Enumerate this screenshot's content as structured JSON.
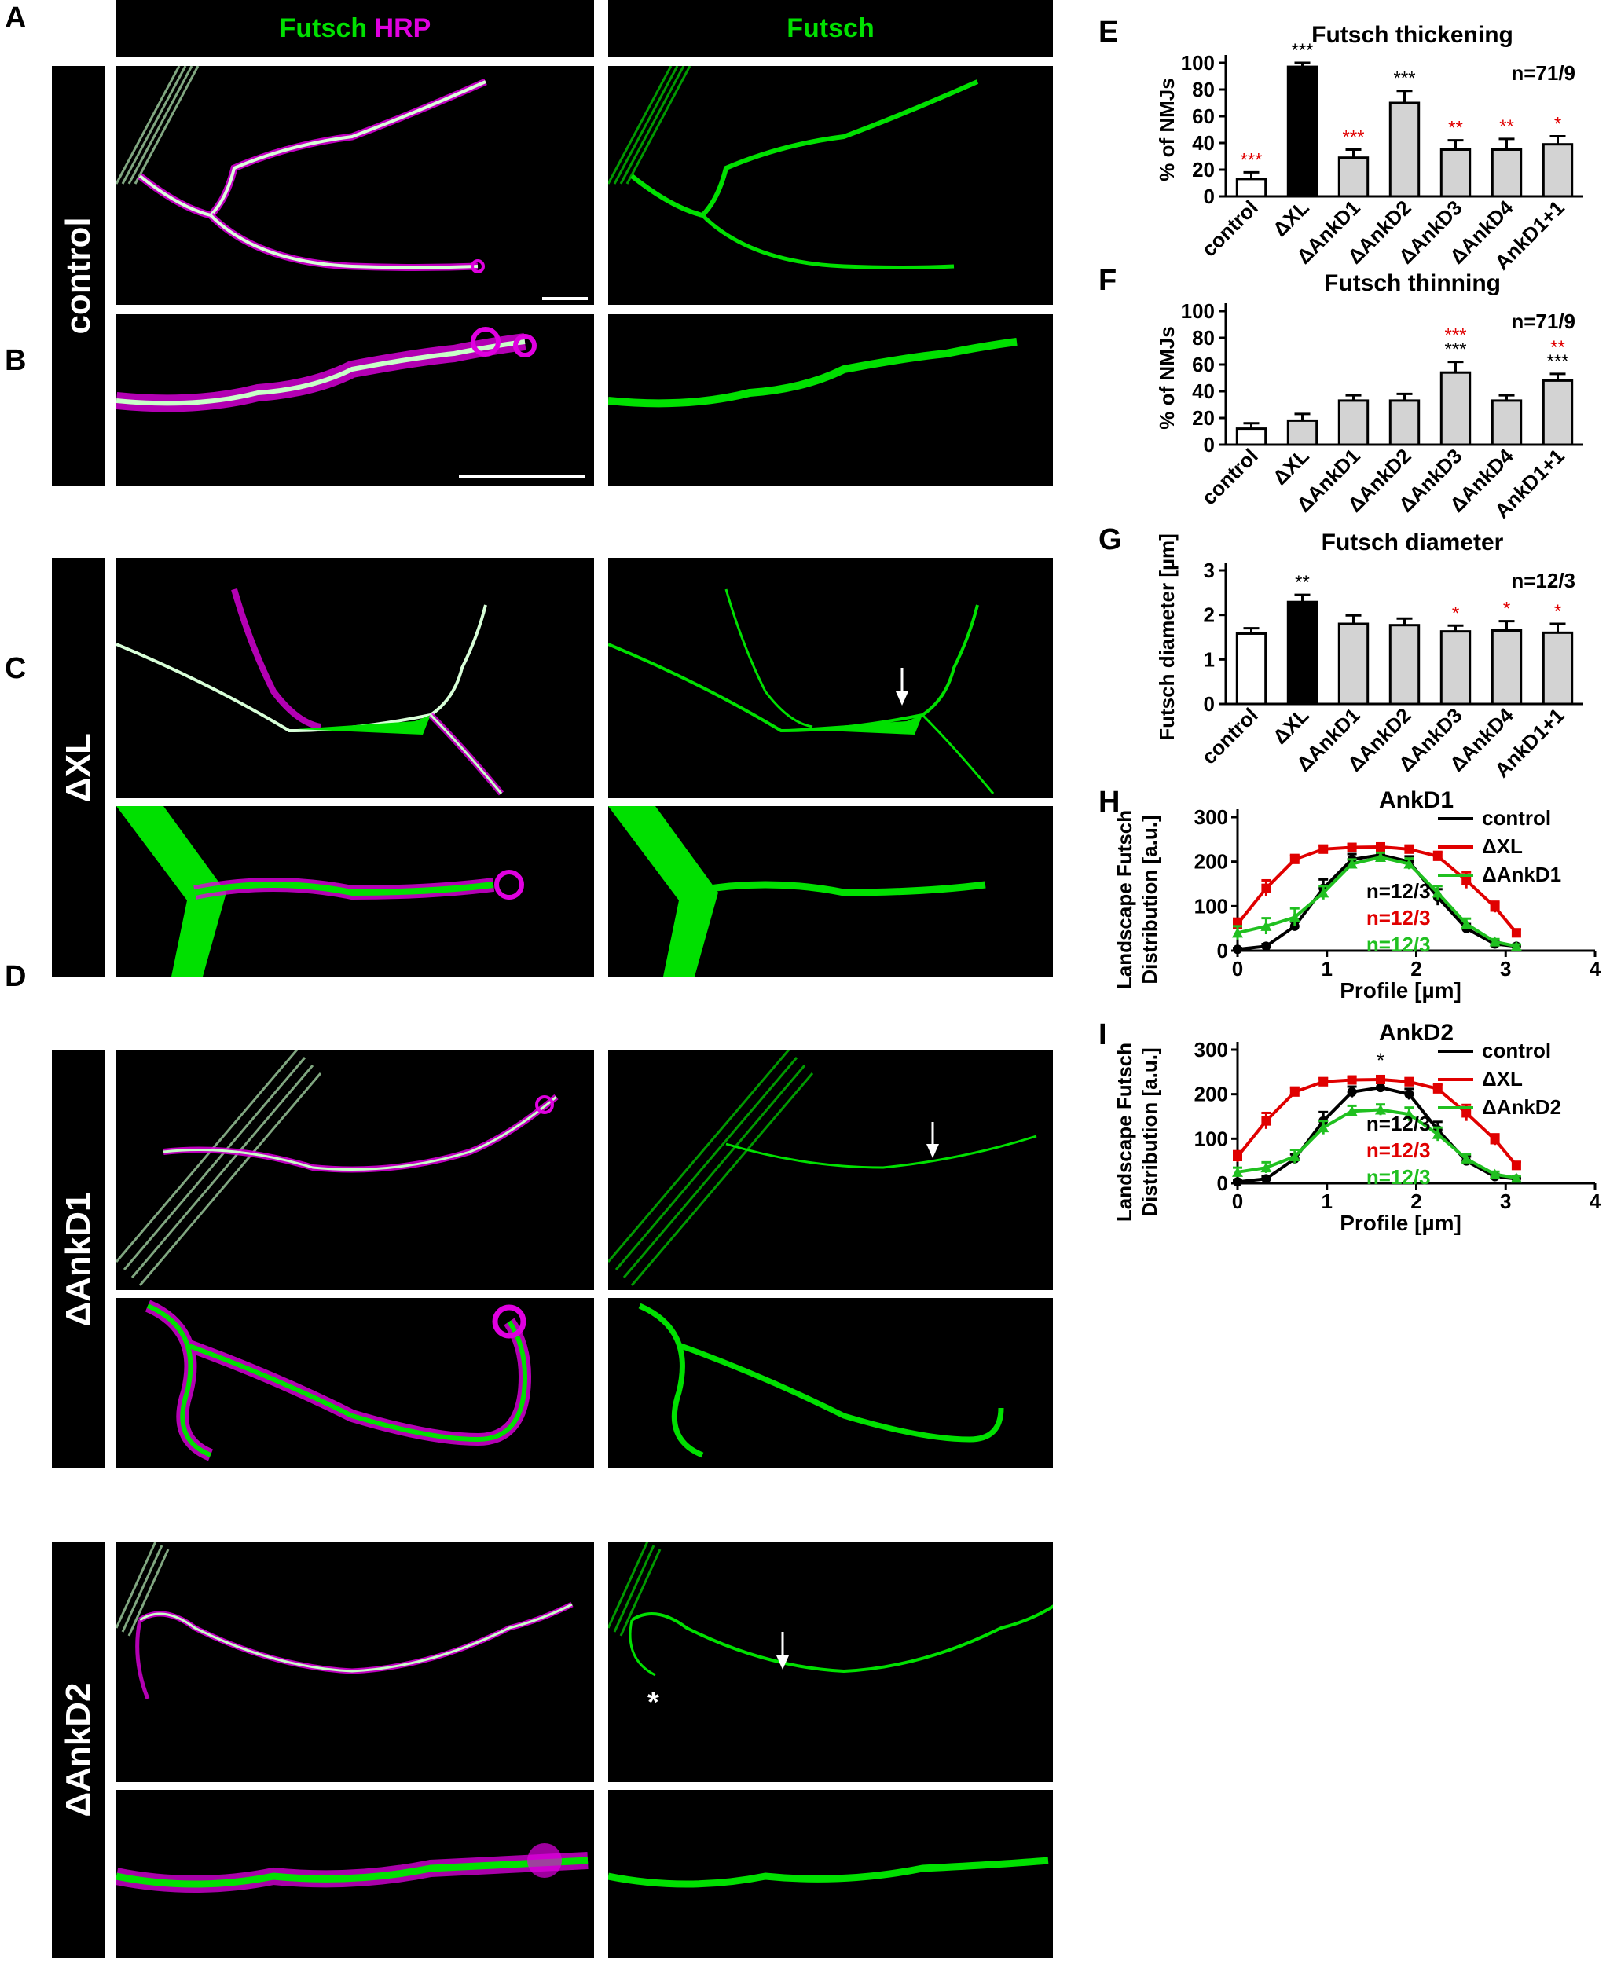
{
  "panel_letters": [
    "A",
    "B",
    "C",
    "D",
    "E",
    "F",
    "G",
    "H",
    "I"
  ],
  "headers": {
    "merge_green": "Futsch",
    "merge_magenta": "HRP",
    "single": "Futsch"
  },
  "rows": [
    {
      "label": "control"
    },
    {
      "label": "ΔXL"
    },
    {
      "label": "ΔAnkD1"
    },
    {
      "label": "ΔAnkD2"
    }
  ],
  "colors": {
    "green": "#00e000",
    "magenta": "#e000e0",
    "red_sig": "#e00000",
    "grey_bar": "#d3d3d3"
  },
  "asterisk_mark": "*",
  "chart_data": [
    {
      "panel": "E",
      "type": "bar",
      "title": "Futsch thickening",
      "ylabel": "% of NMJs",
      "ylim": [
        0,
        100
      ],
      "yticks": [
        0,
        20,
        40,
        60,
        80,
        100
      ],
      "n_label": "n=71/9",
      "categories": [
        "control",
        "ΔXL",
        "ΔAnkD1",
        "ΔAnkD2",
        "ΔAnkD3",
        "ΔAnkD4",
        "AnkD1+1"
      ],
      "values": [
        13,
        97,
        29,
        70,
        35,
        35,
        39
      ],
      "errors": [
        5,
        3,
        6,
        9,
        7,
        8,
        6
      ],
      "fills": [
        "#ffffff",
        "#000000",
        "#d3d3d3",
        "#d3d3d3",
        "#d3d3d3",
        "#d3d3d3",
        "#d3d3d3"
      ],
      "sig_black": [
        "",
        "***",
        "",
        "***",
        "",
        "",
        ""
      ],
      "sig_red": [
        "***",
        "",
        "***",
        "",
        "**",
        "**",
        "*"
      ]
    },
    {
      "panel": "F",
      "type": "bar",
      "title": "Futsch thinning",
      "ylabel": "% of NMJs",
      "ylim": [
        0,
        100
      ],
      "yticks": [
        0,
        20,
        40,
        60,
        80,
        100
      ],
      "n_label": "n=71/9",
      "categories": [
        "control",
        "ΔXL",
        "ΔAnkD1",
        "ΔAnkD2",
        "ΔAnkD3",
        "ΔAnkD4",
        "AnkD1+1"
      ],
      "values": [
        12,
        18,
        33,
        33,
        54,
        33,
        48
      ],
      "errors": [
        4,
        5,
        4,
        5,
        8,
        4,
        5
      ],
      "fills": [
        "#ffffff",
        "#d3d3d3",
        "#d3d3d3",
        "#d3d3d3",
        "#d3d3d3",
        "#d3d3d3",
        "#d3d3d3"
      ],
      "sig_black": [
        "",
        "",
        "",
        "",
        "***",
        "",
        "***"
      ],
      "sig_red": [
        "",
        "",
        "",
        "",
        "***",
        "",
        "**"
      ]
    },
    {
      "panel": "G",
      "type": "bar",
      "title": "Futsch diameter",
      "ylabel": "Futsch diameter [µm]",
      "ylim": [
        0,
        3
      ],
      "yticks": [
        0,
        1,
        2,
        3
      ],
      "n_label": "n=12/3",
      "categories": [
        "control",
        "ΔXL",
        "ΔAnkD1",
        "ΔAnkD2",
        "ΔAnkD3",
        "ΔAnkD4",
        "AnkD1+1"
      ],
      "values": [
        1.58,
        2.29,
        1.8,
        1.77,
        1.63,
        1.65,
        1.6
      ],
      "errors": [
        0.12,
        0.16,
        0.19,
        0.15,
        0.13,
        0.21,
        0.2
      ],
      "fills": [
        "#ffffff",
        "#000000",
        "#d3d3d3",
        "#d3d3d3",
        "#d3d3d3",
        "#d3d3d3",
        "#d3d3d3"
      ],
      "sig_black": [
        "",
        "**",
        "",
        "",
        "",
        "",
        ""
      ],
      "sig_red": [
        "",
        "",
        "",
        "",
        "*",
        "*",
        "*"
      ]
    },
    {
      "panel": "H",
      "type": "line",
      "title": "AnkD1",
      "ylabel": "Landscape Futsch Distribution [a.u.]",
      "xlabel": "Profile [µm]",
      "xlim": [
        0,
        4
      ],
      "ylim": [
        0,
        300
      ],
      "xticks": [
        0,
        1,
        2,
        3,
        4
      ],
      "yticks": [
        0,
        100,
        200,
        300
      ],
      "x": [
        0.0,
        0.32,
        0.64,
        0.96,
        1.28,
        1.6,
        1.92,
        2.24,
        2.56,
        2.88,
        3.12
      ],
      "series": [
        {
          "name": "control",
          "color": "#000000",
          "values": [
            3,
            10,
            55,
            140,
            205,
            215,
            200,
            120,
            50,
            15,
            10
          ],
          "errors": [
            3,
            5,
            10,
            20,
            12,
            10,
            12,
            18,
            10,
            5,
            3
          ]
        },
        {
          "name": "ΔXL",
          "color": "#e00000",
          "values": [
            60,
            140,
            205,
            228,
            232,
            233,
            228,
            212,
            158,
            98,
            40
          ],
          "errors": [
            12,
            18,
            10,
            8,
            7,
            6,
            8,
            10,
            18,
            12,
            8
          ]
        },
        {
          "name": "ΔAnkD1",
          "color": "#20c020",
          "values": [
            40,
            55,
            75,
            130,
            195,
            210,
            195,
            130,
            60,
            20,
            10
          ],
          "errors": [
            15,
            18,
            20,
            15,
            10,
            10,
            12,
            15,
            12,
            6,
            4
          ]
        }
      ],
      "n_labels": [
        {
          "text": "n=12/3",
          "color": "#000000"
        },
        {
          "text": "n=12/3",
          "color": "#e00000"
        },
        {
          "text": "n=12/3",
          "color": "#20c020"
        }
      ],
      "annotation": ""
    },
    {
      "panel": "I",
      "type": "line",
      "title": "AnkD2",
      "ylabel": "Landscape Futsch Distribution [a.u.]",
      "xlabel": "Profile [µm]",
      "xlim": [
        0,
        4
      ],
      "ylim": [
        0,
        300
      ],
      "xticks": [
        0,
        1,
        2,
        3,
        4
      ],
      "yticks": [
        0,
        100,
        200,
        300
      ],
      "x": [
        0.0,
        0.32,
        0.64,
        0.96,
        1.28,
        1.6,
        1.92,
        2.24,
        2.56,
        2.88,
        3.12
      ],
      "series": [
        {
          "name": "control",
          "color": "#000000",
          "values": [
            3,
            10,
            55,
            140,
            205,
            215,
            200,
            120,
            50,
            15,
            10
          ],
          "errors": [
            3,
            5,
            10,
            20,
            12,
            10,
            12,
            18,
            10,
            5,
            3
          ]
        },
        {
          "name": "ΔXL",
          "color": "#e00000",
          "values": [
            60,
            140,
            205,
            228,
            232,
            233,
            228,
            212,
            158,
            98,
            40
          ],
          "errors": [
            12,
            18,
            10,
            8,
            7,
            6,
            8,
            10,
            18,
            12,
            8
          ]
        },
        {
          "name": "ΔAnkD2",
          "color": "#20c020",
          "values": [
            25,
            35,
            60,
            125,
            162,
            165,
            155,
            110,
            55,
            20,
            12
          ],
          "errors": [
            10,
            12,
            15,
            15,
            12,
            12,
            15,
            15,
            10,
            6,
            4
          ]
        }
      ],
      "n_labels": [
        {
          "text": "n=12/3",
          "color": "#000000"
        },
        {
          "text": "n=12/3",
          "color": "#e00000"
        },
        {
          "text": "n=12/3",
          "color": "#20c020"
        }
      ],
      "annotation": "*"
    }
  ]
}
